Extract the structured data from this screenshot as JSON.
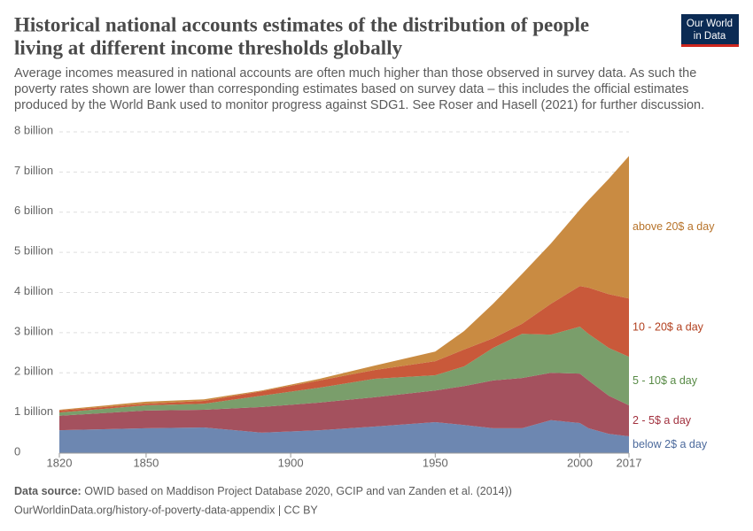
{
  "chart_data": {
    "type": "stacked-area",
    "title_lines": [
      "Historical national accounts estimates of the distribution of people",
      "living at different income thresholds globally"
    ],
    "subtitle_lines": [
      "Average incomes measured in national accounts are often much higher than those observed in survey data. As such the",
      "poverty rates shown are lower than corresponding estimates based on survey data – this includes the official estimates",
      "produced by the World Bank used to monitor progress against SDG1. See Roser and Hasell (2021) for further discussion."
    ],
    "logo_lines": [
      "Our World",
      "in Data"
    ],
    "x": [
      1820,
      1850,
      1870,
      1890,
      1910,
      1929,
      1950,
      1960,
      1970,
      1980,
      1990,
      2000,
      2003,
      2010,
      2017
    ],
    "series": [
      {
        "name": "below 2$ a day",
        "color": "#6d87b1",
        "label_color": "#4c6a9c",
        "values": [
          0.57,
          0.62,
          0.64,
          0.51,
          0.57,
          0.66,
          0.77,
          0.7,
          0.62,
          0.62,
          0.82,
          0.75,
          0.62,
          0.48,
          0.42
        ]
      },
      {
        "name": "2 - 5$ a day",
        "color": "#a4515e",
        "label_color": "#a2323f",
        "values": [
          0.36,
          0.44,
          0.44,
          0.64,
          0.69,
          0.73,
          0.79,
          0.97,
          1.19,
          1.25,
          1.18,
          1.23,
          1.19,
          0.95,
          0.77
        ]
      },
      {
        "name": "5 - 10$ a day",
        "color": "#7a9e6b",
        "label_color": "#578a45",
        "values": [
          0.08,
          0.13,
          0.15,
          0.28,
          0.37,
          0.46,
          0.38,
          0.49,
          0.81,
          1.1,
          0.95,
          1.17,
          1.16,
          1.19,
          1.21
        ]
      },
      {
        "name": "10 - 20$ a day",
        "color": "#c9593a",
        "label_color": "#b2401f",
        "values": [
          0.05,
          0.04,
          0.07,
          0.11,
          0.18,
          0.22,
          0.35,
          0.42,
          0.24,
          0.25,
          0.77,
          1.01,
          1.15,
          1.34,
          1.45
        ]
      },
      {
        "name": "above 20$ a day",
        "color": "#c98b42",
        "label_color": "#b7732a",
        "values": [
          0.02,
          0.05,
          0.04,
          0.02,
          0.04,
          0.11,
          0.24,
          0.46,
          0.86,
          1.24,
          1.5,
          1.9,
          2.18,
          2.87,
          3.55
        ]
      }
    ],
    "xlim": [
      1820,
      2017
    ],
    "xticks": [
      1820,
      1850,
      1900,
      1950,
      2000,
      2017
    ],
    "ylim": [
      0,
      8
    ],
    "yticks": [
      {
        "value": 0,
        "label": "0"
      },
      {
        "value": 1,
        "label": "1 billion"
      },
      {
        "value": 2,
        "label": "2 billion"
      },
      {
        "value": 3,
        "label": "3 billion"
      },
      {
        "value": 4,
        "label": "4 billion"
      },
      {
        "value": 5,
        "label": "5 billion"
      },
      {
        "value": 6,
        "label": "6 billion"
      },
      {
        "value": 7,
        "label": "7 billion"
      },
      {
        "value": 8,
        "label": "8 billion"
      }
    ],
    "grid": true,
    "source_label": "Data source:",
    "source": "OWID based on Maddison Project Database 2020, GCIP and van Zanden et al. (2014))",
    "url": "OurWorldinData.org/history-of-poverty-data-appendix | CC BY"
  }
}
